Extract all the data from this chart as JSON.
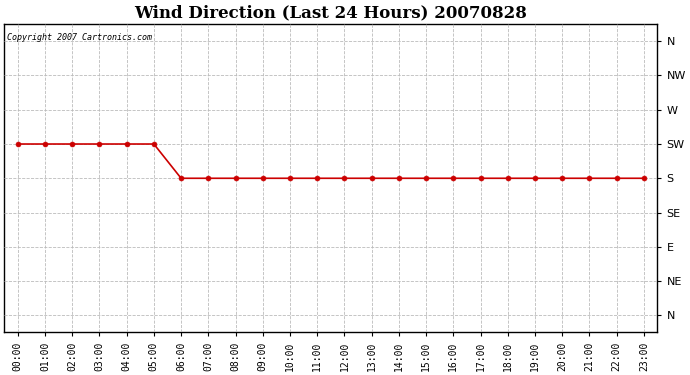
{
  "title": "Wind Direction (Last 24 Hours) 20070828",
  "copyright_text": "Copyright 2007 Cartronics.com",
  "line_color": "#cc0000",
  "background_color": "#ffffff",
  "plot_bg_color": "#ffffff",
  "grid_color": "#bbbbbb",
  "x_hours": [
    0,
    1,
    2,
    3,
    4,
    5,
    6,
    7,
    8,
    9,
    10,
    11,
    12,
    13,
    14,
    15,
    16,
    17,
    18,
    19,
    20,
    21,
    22,
    23
  ],
  "y_values": [
    5,
    5,
    5,
    5,
    5,
    5,
    4,
    4,
    4,
    4,
    4,
    4,
    4,
    4,
    4,
    4,
    4,
    4,
    4,
    4,
    4,
    4,
    4,
    4
  ],
  "direction_labels": [
    "N",
    "NW",
    "W",
    "SW",
    "S",
    "SE",
    "E",
    "NE",
    "N"
  ],
  "direction_ticks": [
    8,
    7,
    6,
    5,
    4,
    3,
    2,
    1,
    0
  ],
  "ylim": [
    -0.5,
    8.5
  ],
  "xlim": [
    -0.5,
    23.5
  ],
  "title_fontsize": 12,
  "marker_size": 3.5,
  "line_width": 1.2
}
